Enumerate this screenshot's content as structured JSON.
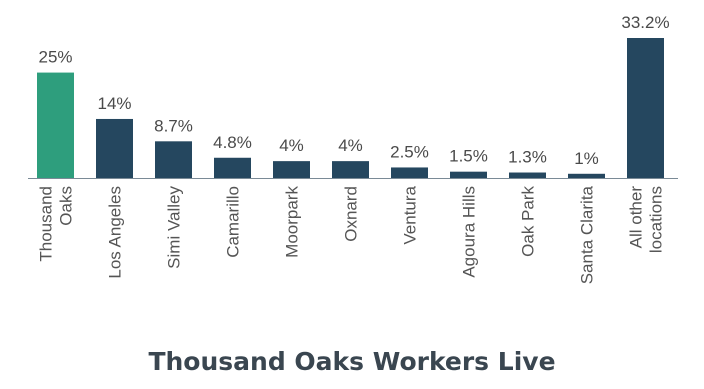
{
  "chart_data": {
    "type": "bar",
    "title": "Thousand Oaks Workers Live",
    "categories": [
      "Thousand Oaks",
      "Los Angeles",
      "Simi Valley",
      "Camarillo",
      "Moorpark",
      "Oxnard",
      "Ventura",
      "Agoura Hills",
      "Oak Park",
      "Santa Clarita",
      "All other locations"
    ],
    "category_lines": [
      [
        "Thousand",
        "Oaks"
      ],
      [
        "Los Angeles"
      ],
      [
        "Simi Valley"
      ],
      [
        "Camarillo"
      ],
      [
        "Moorpark"
      ],
      [
        "Oxnard"
      ],
      [
        "Ventura"
      ],
      [
        "Agoura Hills"
      ],
      [
        "Oak Park"
      ],
      [
        "Santa Clarita"
      ],
      [
        "All other",
        "locations"
      ]
    ],
    "values": [
      25,
      14,
      8.7,
      4.8,
      4,
      4,
      2.5,
      1.5,
      1.3,
      1,
      33.2
    ],
    "value_labels": [
      "25%",
      "14%",
      "8.7%",
      "4.8%",
      "4%",
      "4%",
      "2.5%",
      "1.5%",
      "1.3%",
      "1%",
      "33.2%"
    ],
    "xlabel": "",
    "ylabel": "",
    "ylim": [
      0,
      33.2
    ],
    "grid": false,
    "highlight_index": 0,
    "colors": {
      "highlight": "#2e9e7d",
      "default": "#25475f",
      "axis": "#7a8a96"
    }
  }
}
